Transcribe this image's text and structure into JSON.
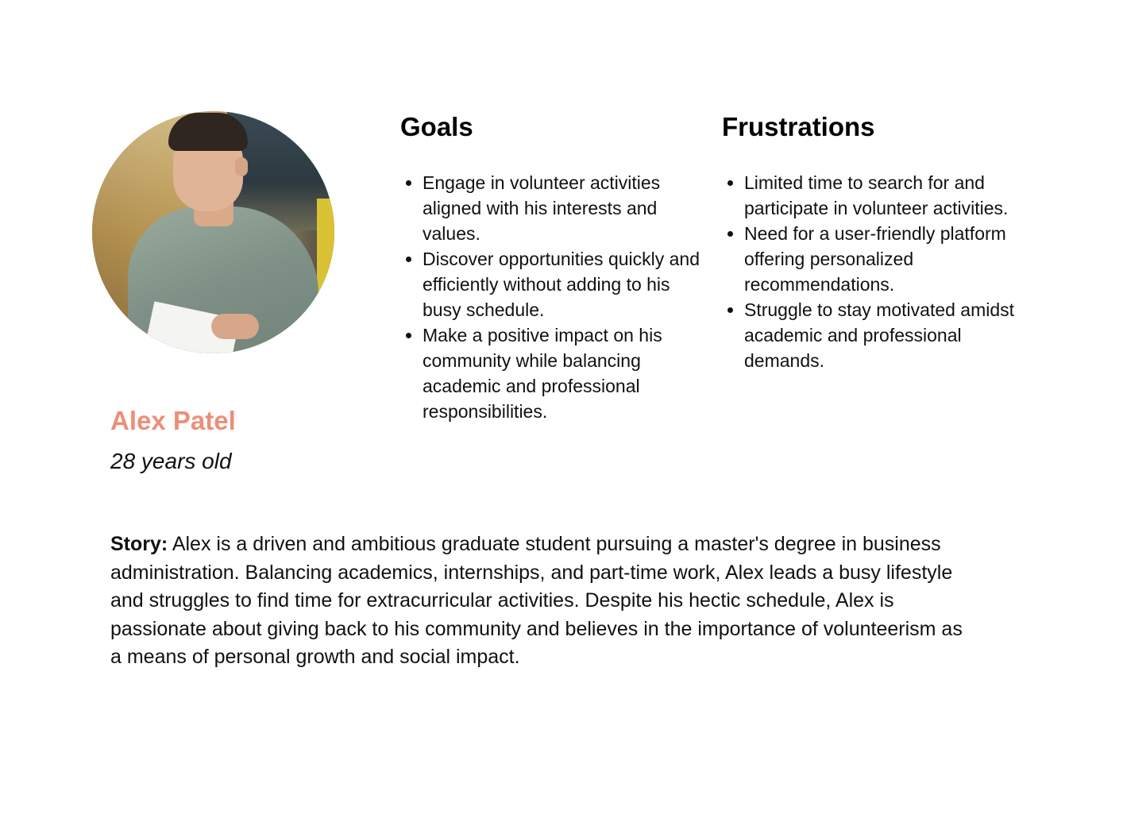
{
  "persona": {
    "photo_icon": "person-photo",
    "name": "Alex Patel",
    "age": "28 years old",
    "name_color": "#ec8f78"
  },
  "goals": {
    "heading": "Goals",
    "items": [
      "Engage in volunteer activities aligned with his interests and values.",
      "Discover opportunities quickly and efficiently without adding to his busy schedule.",
      "Make a positive impact on his community while balancing academic and professional responsibilities."
    ]
  },
  "frustrations": {
    "heading": "Frustrations",
    "items": [
      "Limited time to search for and participate in volunteer activities.",
      "Need for a user-friendly platform offering personalized recommendations.",
      "Struggle to stay motivated amidst academic and professional demands."
    ]
  },
  "story": {
    "label": "Story:",
    "text": "Alex is a driven and ambitious graduate student pursuing a master's degree in business administration. Balancing academics, internships, and part-time work, Alex leads a busy lifestyle and struggles to find time for extracurricular activities. Despite his hectic schedule, Alex is passionate about giving back to his community and believes in the importance of volunteerism as a means of personal growth and social impact."
  }
}
